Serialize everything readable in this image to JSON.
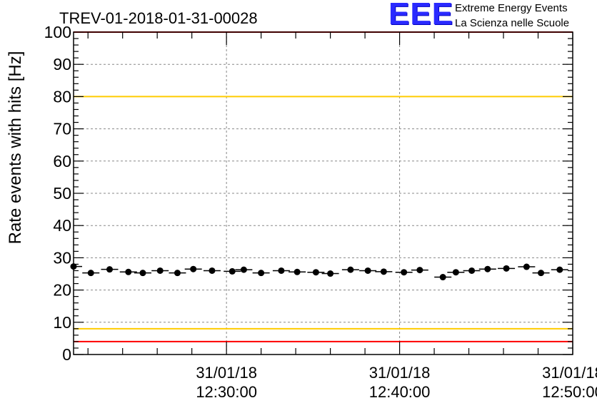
{
  "chart_data": {
    "type": "scatter",
    "title": "TREV-01-2018-01-31-00028",
    "ylabel": "Rate events with hits [Hz]",
    "xlabel": "",
    "ylim": [
      0,
      100
    ],
    "yticks": [
      0,
      10,
      20,
      30,
      40,
      50,
      60,
      70,
      80,
      90,
      100
    ],
    "xrange": [
      "2018-01-31 12:21:10",
      "2018-01-31 12:50:00"
    ],
    "xticks": [
      {
        "date": "31/01/18",
        "time": "12:30:00"
      },
      {
        "date": "31/01/18",
        "time": "12:40:00"
      },
      {
        "date": "31/01/18",
        "time": "12:50:00"
      }
    ],
    "grid": true,
    "series": [
      {
        "x": [
          "12:21:10",
          "12:22:10",
          "12:23:15",
          "12:24:20",
          "12:25:10",
          "12:26:10",
          "12:27:10",
          "12:28:05",
          "12:29:10",
          "12:30:20",
          "12:31:00",
          "12:32:00",
          "12:33:10",
          "12:34:05",
          "12:35:10",
          "12:36:00",
          "12:37:10",
          "12:38:10",
          "12:39:05",
          "12:40:15",
          "12:41:10",
          "12:42:30",
          "12:43:15",
          "12:44:10",
          "12:45:05",
          "12:46:10",
          "12:47:20",
          "12:48:10",
          "12:49:15"
        ],
        "values": [
          27.3,
          25.3,
          26.4,
          25.6,
          25.3,
          26.0,
          25.3,
          26.5,
          26.0,
          25.8,
          26.3,
          25.3,
          26.0,
          25.6,
          25.5,
          25.1,
          26.3,
          26.0,
          25.7,
          25.5,
          26.2,
          24.0,
          25.5,
          26.0,
          26.5,
          26.7,
          27.2,
          25.3,
          26.3
        ],
        "color": "#000000"
      }
    ],
    "reference_lines": [
      {
        "y": 100,
        "color": "#ff0000"
      },
      {
        "y": 80,
        "color": "#ffcc00"
      },
      {
        "y": 8,
        "color": "#ffcc00"
      },
      {
        "y": 4,
        "color": "#ff0000"
      }
    ]
  },
  "logo": {
    "mark": "EEE",
    "line1": "Extreme Energy Events",
    "line2": "La Scienza nelle Scuole",
    "color": "#0000ff"
  }
}
